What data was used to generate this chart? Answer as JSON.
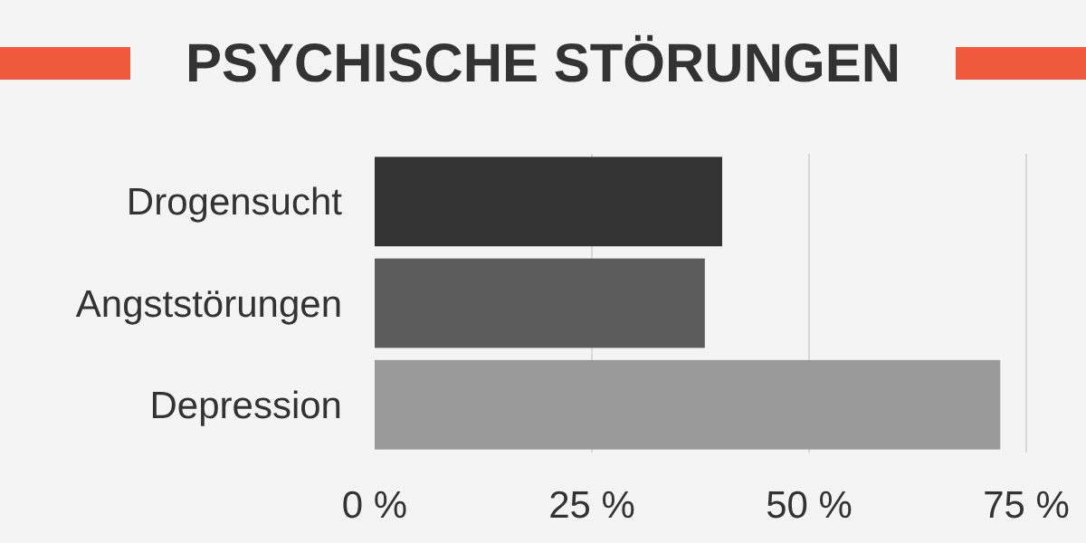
{
  "chart_data": {
    "type": "bar",
    "orientation": "horizontal",
    "title": "PSYCHISCHE STÖRUNGEN",
    "categories": [
      "Drogensucht",
      "Angststörungen",
      "Depression"
    ],
    "values": [
      40,
      38,
      72
    ],
    "colors": [
      "#333333",
      "#5c5c5c",
      "#999999"
    ],
    "xlim": [
      0,
      75
    ],
    "xticks": [
      {
        "value": 0,
        "label": "0 %"
      },
      {
        "value": 25,
        "label": "25 %"
      },
      {
        "value": 50,
        "label": "50 %"
      },
      {
        "value": 75,
        "label": "75 %"
      }
    ],
    "grid": "x"
  }
}
